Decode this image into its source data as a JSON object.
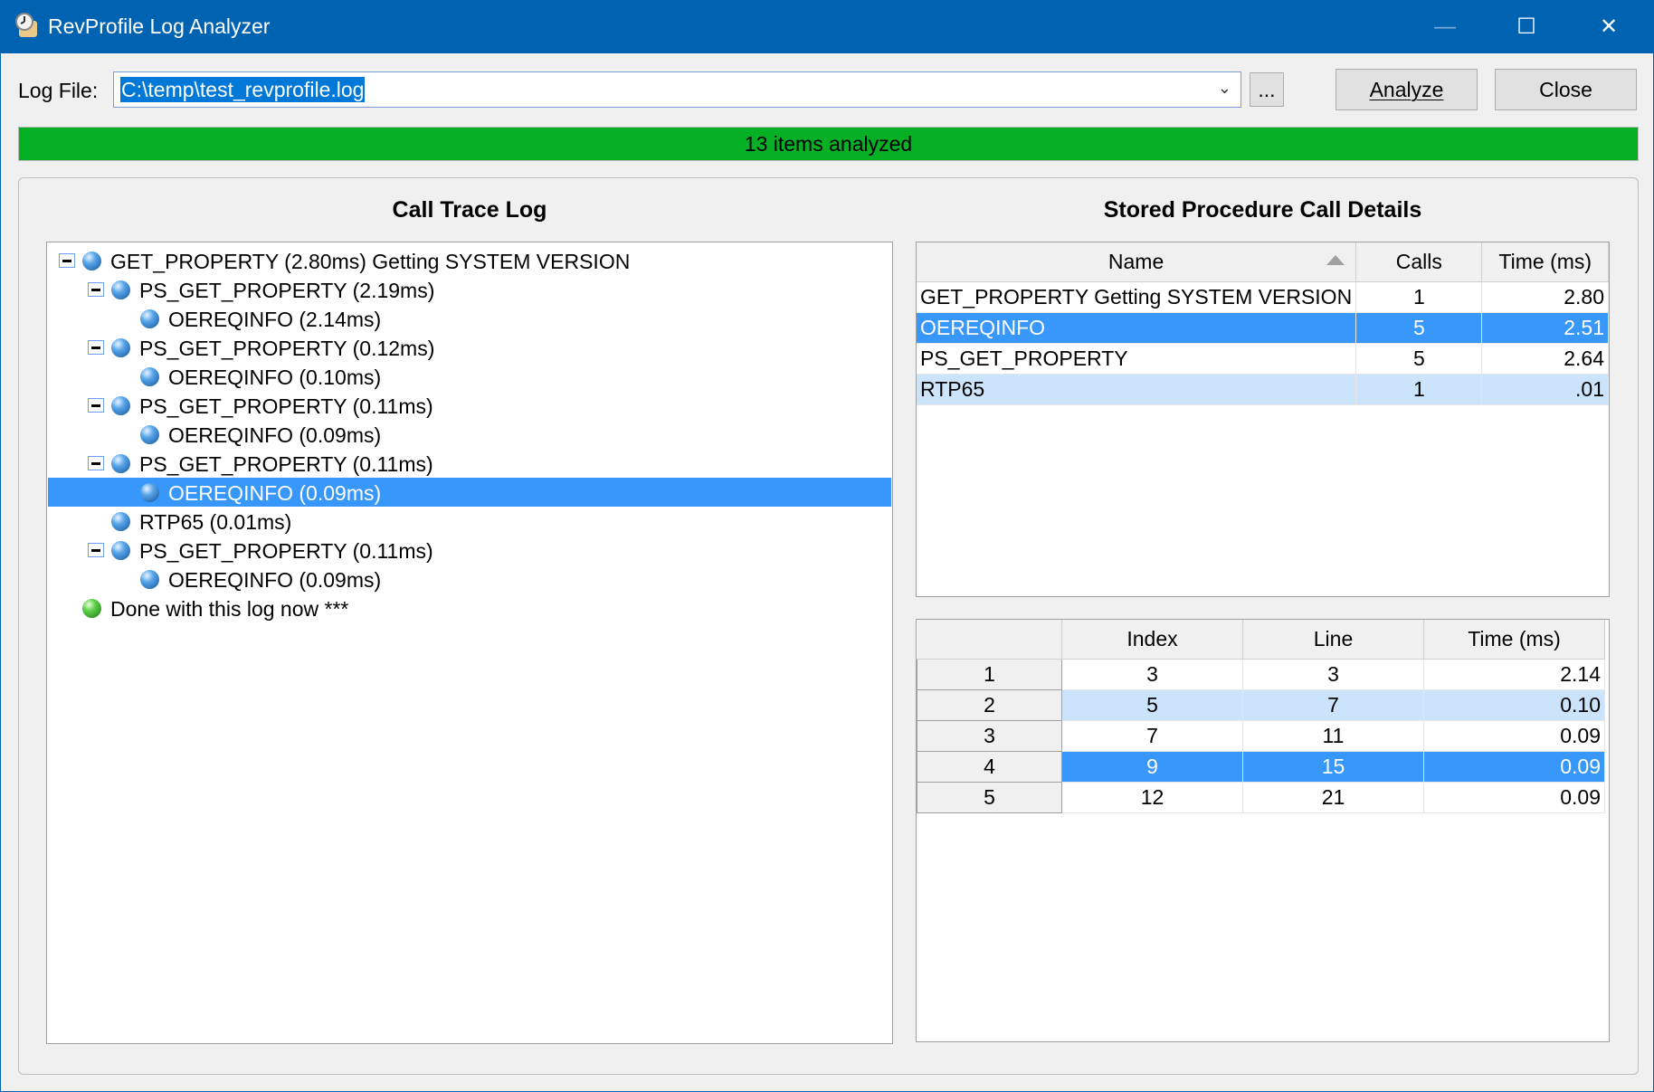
{
  "window": {
    "title": "RevProfile Log Analyzer",
    "minimize": "—",
    "maximize": "☐",
    "close": "✕"
  },
  "toolbar": {
    "log_file_label": "Log File:",
    "log_file_value": "C:\\temp\\test_revprofile.log",
    "browse_label": "...",
    "analyze_label": "Analyze",
    "close_label": "Close"
  },
  "progress": {
    "text": "13 items analyzed",
    "value": 100,
    "color": "#06b025"
  },
  "call_trace": {
    "title": "Call Trace Log",
    "items": [
      {
        "level": 0,
        "text": "GET_PROPERTY (2.80ms) Getting SYSTEM VERSION",
        "expanded": true,
        "icon": "blue-sphere"
      },
      {
        "level": 1,
        "text": "PS_GET_PROPERTY (2.19ms)",
        "expanded": true,
        "icon": "blue-sphere"
      },
      {
        "level": 2,
        "text": "OEREQINFO (2.14ms)",
        "icon": "blue-sphere"
      },
      {
        "level": 1,
        "text": "PS_GET_PROPERTY (0.12ms)",
        "expanded": true,
        "icon": "blue-sphere"
      },
      {
        "level": 2,
        "text": "OEREQINFO (0.10ms)",
        "icon": "blue-sphere"
      },
      {
        "level": 1,
        "text": "PS_GET_PROPERTY (0.11ms)",
        "expanded": true,
        "icon": "blue-sphere"
      },
      {
        "level": 2,
        "text": "OEREQINFO (0.09ms)",
        "icon": "blue-sphere"
      },
      {
        "level": 1,
        "text": "PS_GET_PROPERTY (0.11ms)",
        "expanded": true,
        "icon": "blue-sphere"
      },
      {
        "level": 2,
        "text": "OEREQINFO (0.09ms)",
        "icon": "blue-sphere",
        "selected": true
      },
      {
        "level": 1,
        "text": "RTP65 (0.01ms)",
        "icon": "blue-sphere"
      },
      {
        "level": 1,
        "text": "PS_GET_PROPERTY (0.11ms)",
        "expanded": true,
        "icon": "blue-sphere"
      },
      {
        "level": 2,
        "text": "OEREQINFO (0.09ms)",
        "icon": "blue-sphere"
      },
      {
        "level": 0,
        "text": "Done with this log now ***",
        "icon": "green-sphere"
      }
    ]
  },
  "details": {
    "title": "Stored Procedure Call Details",
    "columns": [
      "Name",
      "Calls",
      "Time (ms)"
    ],
    "sort": "Name ascending",
    "rows": [
      {
        "cells": [
          "GET_PROPERTY Getting SYSTEM VERSION",
          "1",
          "2.80"
        ]
      },
      {
        "cells": [
          "OEREQINFO",
          "5",
          "2.51"
        ],
        "state": "selected"
      },
      {
        "cells": [
          "PS_GET_PROPERTY",
          "5",
          "2.64"
        ]
      },
      {
        "cells": [
          "RTP65",
          "1",
          ".01"
        ],
        "state": "alt"
      }
    ]
  },
  "calls": {
    "columns": [
      "",
      "Index",
      "Line",
      "Time (ms)"
    ],
    "rows": [
      {
        "cells": [
          "1",
          "3",
          "3",
          "2.14"
        ]
      },
      {
        "cells": [
          "2",
          "5",
          "7",
          "0.10"
        ],
        "state": "alt"
      },
      {
        "cells": [
          "3",
          "7",
          "11",
          "0.09"
        ]
      },
      {
        "cells": [
          "4",
          "9",
          "15",
          "0.09"
        ],
        "state": "selected"
      },
      {
        "cells": [
          "5",
          "12",
          "21",
          "0.09"
        ]
      }
    ]
  }
}
